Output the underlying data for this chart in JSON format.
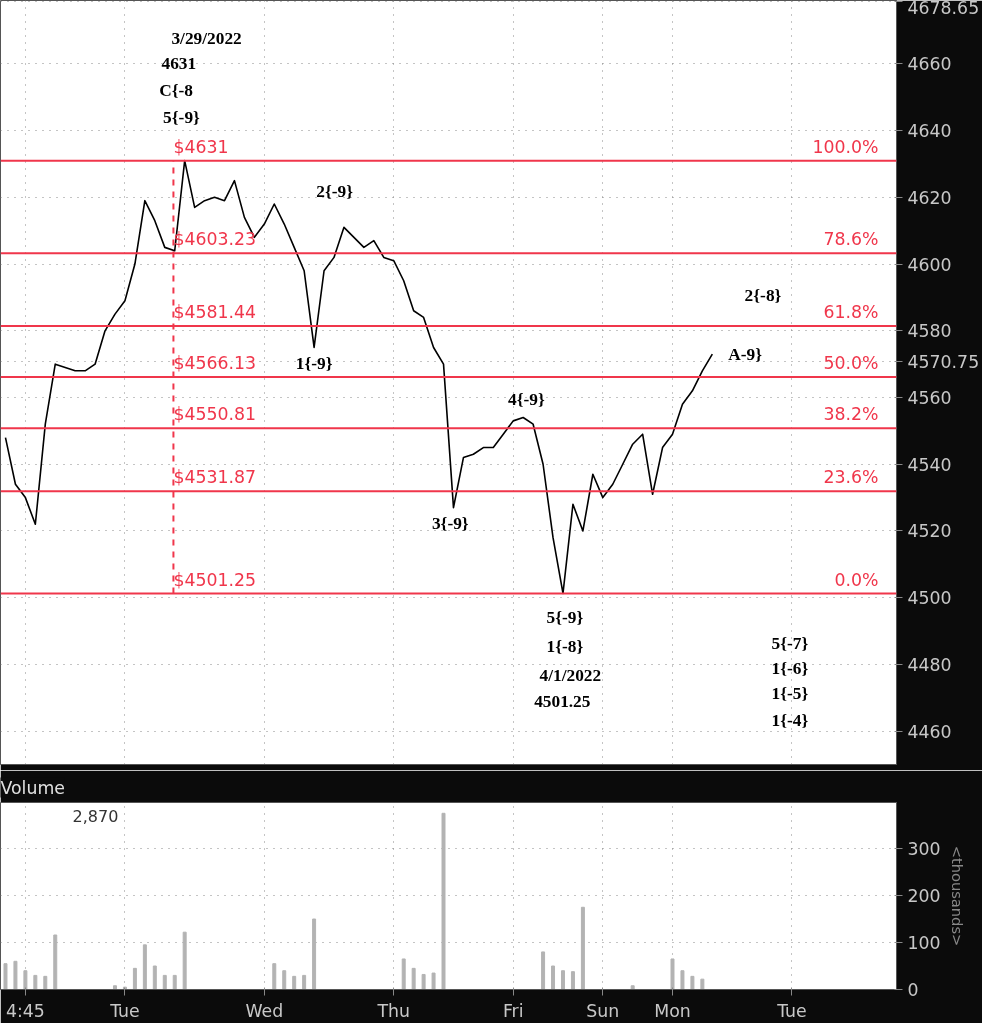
{
  "chart_data": [
    {
      "type": "line",
      "ylim": [
        4450,
        4679
      ],
      "categories": [
        null,
        null,
        null,
        null,
        null,
        null,
        null,
        null,
        null,
        null,
        null,
        null,
        null,
        null,
        null,
        null,
        null,
        null,
        null,
        null,
        null,
        null,
        null,
        null,
        null,
        null,
        null,
        null,
        null,
        null,
        null,
        null,
        null,
        null,
        null,
        null,
        null,
        null,
        null,
        null,
        null,
        null,
        null,
        null,
        null,
        null,
        null,
        null,
        null,
        null,
        null,
        null,
        null,
        null,
        null,
        null,
        null,
        null,
        null,
        null,
        null,
        null,
        null,
        null,
        null,
        null,
        null,
        null,
        null,
        null,
        null,
        null,
        null,
        null,
        null,
        null,
        null,
        null,
        null,
        null,
        null,
        null,
        null,
        null,
        null,
        null,
        null,
        null,
        null,
        null
      ],
      "yticks": [
        4460,
        4480,
        4500,
        4520,
        4540,
        4560,
        4580,
        4600,
        4620,
        4640,
        4660,
        4570.75,
        4678.65
      ],
      "tick_labels": "y",
      "grid": true,
      "series": [
        {
          "color": "#000000",
          "values": [
            4548,
            4534,
            4530,
            4522,
            4552,
            4570,
            4569,
            4568,
            4568,
            4570,
            4580,
            4585,
            4589,
            4600,
            4619,
            4613,
            4605,
            4604,
            4631,
            4617,
            4619,
            4620,
            4619,
            4625,
            4614,
            4608,
            4612,
            4618,
            4612,
            4605,
            4598,
            4575,
            4598,
            4602,
            4611,
            4608,
            4605,
            4607,
            4602,
            4601,
            4595,
            4586,
            4584,
            4575,
            4570,
            4527,
            4542,
            4543,
            4545,
            4545,
            4549,
            4553,
            4554,
            4552,
            4540,
            4518,
            4501.3,
            4528,
            4520,
            4537,
            4530,
            4534,
            4540,
            4546,
            4549,
            4531,
            4545,
            4549,
            4558,
            4562,
            4568,
            4573,
            null,
            null,
            null,
            null,
            null,
            null,
            null,
            null,
            null,
            null,
            null,
            null,
            null,
            null,
            null,
            null,
            null,
            null
          ]
        }
      ],
      "ref_lines": [
        {
          "axis": "y",
          "value": 4631,
          "label": "$4631",
          "color": "#f0364b"
        },
        {
          "axis": "y",
          "value": 4603.23,
          "label": "$4603.23",
          "color": "#f0364b"
        },
        {
          "axis": "y",
          "value": 4581.44,
          "label": "$4581.44",
          "color": "#f0364b"
        },
        {
          "axis": "y",
          "value": 4566.13,
          "label": "$4566.13",
          "color": "#f0364b"
        },
        {
          "axis": "y",
          "value": 4550.81,
          "label": "$4550.81",
          "color": "#f0364b"
        },
        {
          "axis": "y",
          "value": 4531.87,
          "label": "$4531.87",
          "color": "#f0364b"
        },
        {
          "axis": "y",
          "value": 4501.25,
          "label": "$4501.25",
          "color": "#f0364b"
        }
      ],
      "annotations": [
        {
          "text": "100.0%",
          "y": 4631
        },
        {
          "text": "78.6%",
          "y": 4603.23
        },
        {
          "text": "61.8%",
          "y": 4581.44
        },
        {
          "text": "50.0%",
          "y": 4566.13
        },
        {
          "text": "38.2%",
          "y": 4550.81
        },
        {
          "text": "23.6%",
          "y": 4531.87
        },
        {
          "text": "0.0%",
          "y": 4501.25
        },
        "3/29/2022",
        "4631",
        "C{-8",
        "5{-9}",
        "2{-9}",
        "1{-9}",
        "3{-9}",
        "4{-9}",
        "5{-9}",
        "1{-8}",
        "4/1/2022",
        "4501.25",
        "2{-8}",
        "A-9}",
        "5{-7}",
        "1{-6}",
        "1{-5}",
        "1{-4}"
      ]
    },
    {
      "type": "bar",
      "title": "Volume",
      "ylabel": "<thousands>",
      "ylim": [
        0,
        398
      ],
      "categories": [
        null,
        null,
        "4:45",
        null,
        null,
        null,
        null,
        null,
        null,
        null,
        null,
        null,
        "Tue",
        null,
        null,
        null,
        null,
        null,
        null,
        null,
        null,
        null,
        null,
        null,
        null,
        null,
        "Wed",
        null,
        null,
        null,
        null,
        null,
        null,
        null,
        null,
        null,
        null,
        null,
        null,
        "Thu",
        null,
        null,
        null,
        null,
        null,
        null,
        null,
        null,
        null,
        null,
        null,
        "Fri",
        null,
        null,
        null,
        null,
        null,
        null,
        null,
        null,
        "Sun",
        null,
        null,
        null,
        null,
        null,
        null,
        "Mon",
        null,
        null,
        null,
        null,
        null,
        null,
        null,
        null,
        null,
        null,
        null,
        "Tue",
        null,
        null,
        null,
        null,
        null,
        null,
        null,
        null,
        null,
        null
      ],
      "yticks": [
        0,
        100,
        200,
        300
      ],
      "grid": true,
      "annotations": [
        "2,870"
      ],
      "series": [
        {
          "color": "#b3b3b3",
          "values": [
            55,
            60,
            40,
            30,
            28,
            116,
            null,
            null,
            null,
            null,
            null,
            8,
            5,
            45,
            95,
            50,
            30,
            30,
            122,
            null,
            null,
            null,
            null,
            null,
            null,
            null,
            null,
            55,
            40,
            28,
            30,
            150,
            null,
            null,
            null,
            null,
            null,
            null,
            null,
            null,
            65,
            45,
            32,
            35,
            375,
            null,
            null,
            null,
            null,
            null,
            null,
            null,
            null,
            null,
            80,
            50,
            40,
            38,
            175,
            null,
            null,
            null,
            null,
            8,
            null,
            null,
            null,
            65,
            40,
            28,
            22,
            null,
            null,
            null,
            null,
            null,
            null,
            null,
            null,
            null,
            null,
            null,
            null,
            null,
            null,
            null,
            null,
            null,
            null,
            null
          ]
        }
      ]
    }
  ]
}
